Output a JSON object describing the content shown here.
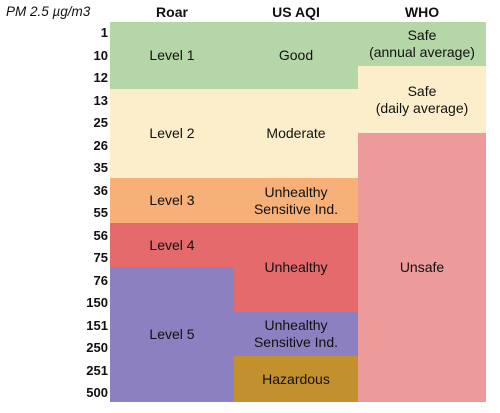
{
  "header": {
    "unit_label": "PM 2.5 µg/m3",
    "columns": [
      "Roar",
      "US AQI",
      "WHO"
    ]
  },
  "ticks": [
    "1",
    "10",
    "12",
    "13",
    "25",
    "26",
    "35",
    "36",
    "55",
    "56",
    "75",
    "76",
    "150",
    "151",
    "250",
    "251",
    "500"
  ],
  "colors": {
    "green": "#b5d6a7",
    "cream": "#fdeecb",
    "orange": "#f7b077",
    "red": "#e46a6b",
    "pink": "#ec9a9a",
    "purple": "#8d80c1",
    "brown": "#c3902e"
  },
  "roar": [
    {
      "label": "Level 1",
      "color": "green"
    },
    {
      "label": "Level 2",
      "color": "cream"
    },
    {
      "label": "Level 3",
      "color": "orange"
    },
    {
      "label": "Level 4",
      "color": "red"
    },
    {
      "label": "Level 5",
      "color": "purple"
    }
  ],
  "usaqi": [
    {
      "lines": [
        "Good"
      ],
      "color": "green"
    },
    {
      "lines": [
        "Moderate"
      ],
      "color": "cream"
    },
    {
      "lines": [
        "Unhealthy",
        "Sensitive Ind."
      ],
      "color": "orange"
    },
    {
      "lines": [
        "Unhealthy"
      ],
      "color": "red"
    },
    {
      "lines": [
        "Unhealthy",
        "Sensitive Ind."
      ],
      "color": "purple"
    },
    {
      "lines": [
        "Hazardous"
      ],
      "color": "brown"
    }
  ],
  "who": [
    {
      "lines": [
        "Safe",
        "(annual average)"
      ],
      "color": "green"
    },
    {
      "lines": [
        "Safe",
        "(daily average)"
      ],
      "color": "cream"
    },
    {
      "lines": [
        "Unsafe"
      ],
      "color": "pink"
    }
  ]
}
